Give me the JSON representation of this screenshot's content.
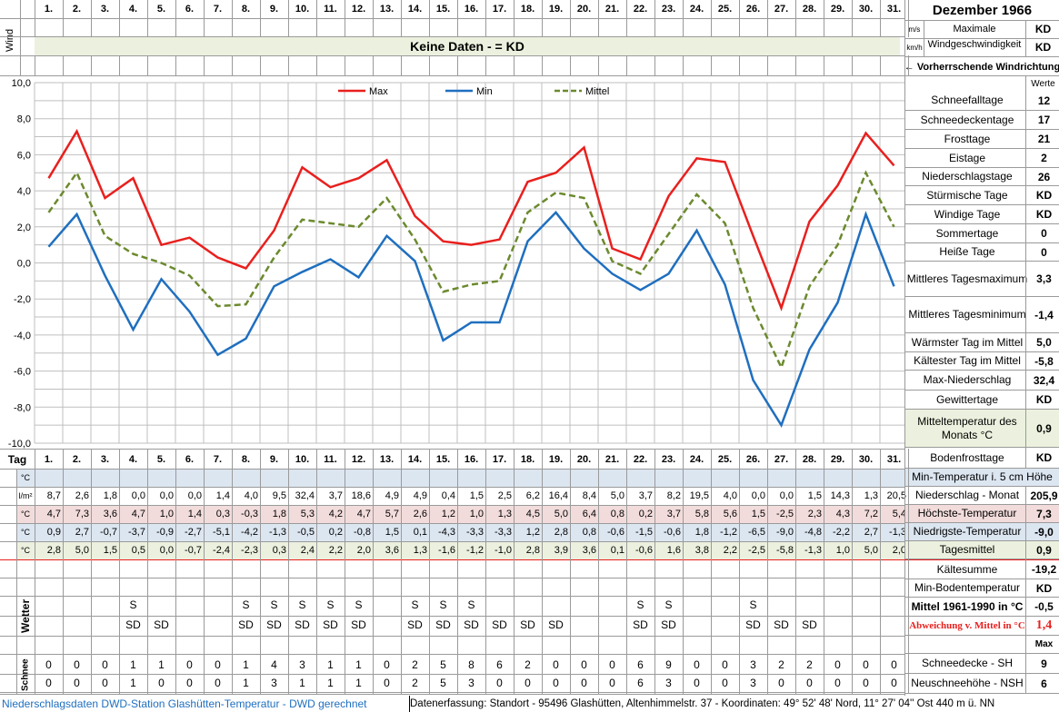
{
  "header": {
    "title": "Dezember 1966",
    "wind_label": "Wind",
    "no_data_banner": "Keine Daten -  = KD",
    "unit_ms": "m/s",
    "unit_kmh": "km/h",
    "max_wind_label": "Maximale Windgeschwindigkeit",
    "max_wind_ms": "KD",
    "max_wind_kmh": "KD",
    "prevailing_wind": "← Vorherrschende Windrichtung",
    "werte": "Werte"
  },
  "days": [
    "1.",
    "2.",
    "3.",
    "4.",
    "5.",
    "6.",
    "7.",
    "8.",
    "9.",
    "10.",
    "11.",
    "12.",
    "13.",
    "14.",
    "15.",
    "16.",
    "17.",
    "18.",
    "19.",
    "20.",
    "21.",
    "22.",
    "23.",
    "24.",
    "25.",
    "26.",
    "27.",
    "28.",
    "29.",
    "30.",
    "31."
  ],
  "chart_data": {
    "type": "line",
    "x": [
      1,
      2,
      3,
      4,
      5,
      6,
      7,
      8,
      9,
      10,
      11,
      12,
      13,
      14,
      15,
      16,
      17,
      18,
      19,
      20,
      21,
      22,
      23,
      24,
      25,
      26,
      27,
      28,
      29,
      30,
      31
    ],
    "ylim": [
      -10,
      10
    ],
    "yticks": [
      "10,0",
      "8,0",
      "6,0",
      "4,0",
      "2,0",
      "0,0",
      "-2,0",
      "-4,0",
      "-6,0",
      "-8,0",
      "-10,0"
    ],
    "grid": true,
    "legend": "top",
    "series": [
      {
        "name": "Max",
        "color": "#e8201e",
        "values": [
          4.7,
          7.3,
          3.6,
          4.7,
          1.0,
          1.4,
          0.3,
          -0.3,
          1.8,
          5.3,
          4.2,
          4.7,
          5.7,
          2.6,
          1.2,
          1.0,
          1.3,
          4.5,
          5.0,
          6.4,
          0.8,
          0.2,
          3.7,
          5.8,
          5.6,
          1.5,
          -2.5,
          2.3,
          4.3,
          7.2,
          5.4
        ]
      },
      {
        "name": "Min",
        "color": "#1f6fbf",
        "values": [
          0.9,
          2.7,
          -0.7,
          -3.7,
          -0.9,
          -2.7,
          -5.1,
          -4.2,
          -1.3,
          -0.5,
          0.2,
          -0.8,
          1.5,
          0.1,
          -4.3,
          -3.3,
          -3.3,
          1.2,
          2.8,
          0.8,
          -0.6,
          -1.5,
          -0.6,
          1.8,
          -1.2,
          -6.5,
          -9.0,
          -4.8,
          -2.2,
          2.7,
          -1.3
        ]
      },
      {
        "name": "Mittel",
        "color": "#6b8a2e",
        "dashed": true,
        "values": [
          2.8,
          5.0,
          1.5,
          0.5,
          0.0,
          -0.7,
          -2.4,
          -2.3,
          0.3,
          2.4,
          2.2,
          2.0,
          3.6,
          1.3,
          -1.6,
          -1.2,
          -1.0,
          2.8,
          3.9,
          3.6,
          0.1,
          -0.6,
          1.6,
          3.8,
          2.2,
          -2.5,
          -5.8,
          -1.3,
          1.0,
          5.0,
          2.0
        ]
      }
    ]
  },
  "table": {
    "tag_label": "Tag",
    "rows": [
      {
        "unit": "°C",
        "bg": "#dce6f1",
        "values": [
          "",
          "",
          "",
          "",
          "",
          "",
          "",
          "",
          "",
          "",
          "",
          "",
          "",
          "",
          "",
          "",
          "",
          "",
          "",
          "",
          "",
          "",
          "",
          "",
          "",
          "",
          "",
          "",
          "",
          "",
          ""
        ]
      },
      {
        "unit": "l/m²",
        "bg": "#ffffff",
        "values": [
          "8,7",
          "2,6",
          "1,8",
          "0,0",
          "0,0",
          "0,0",
          "1,4",
          "4,0",
          "9,5",
          "32,4",
          "3,7",
          "18,6",
          "4,9",
          "4,9",
          "0,4",
          "1,5",
          "2,5",
          "6,2",
          "16,4",
          "8,4",
          "5,0",
          "3,7",
          "8,2",
          "19,5",
          "4,0",
          "0,0",
          "0,0",
          "1,5",
          "14,3",
          "1,3",
          "20,5"
        ]
      },
      {
        "unit": "°C",
        "bg": "#f2dcdb",
        "values": [
          "4,7",
          "7,3",
          "3,6",
          "4,7",
          "1,0",
          "1,4",
          "0,3",
          "-0,3",
          "1,8",
          "5,3",
          "4,2",
          "4,7",
          "5,7",
          "2,6",
          "1,2",
          "1,0",
          "1,3",
          "4,5",
          "5,0",
          "6,4",
          "0,8",
          "0,2",
          "3,7",
          "5,8",
          "5,6",
          "1,5",
          "-2,5",
          "2,3",
          "4,3",
          "7,2",
          "5,4"
        ]
      },
      {
        "unit": "°C",
        "bg": "#dce6f1",
        "values": [
          "0,9",
          "2,7",
          "-0,7",
          "-3,7",
          "-0,9",
          "-2,7",
          "-5,1",
          "-4,2",
          "-1,3",
          "-0,5",
          "0,2",
          "-0,8",
          "1,5",
          "0,1",
          "-4,3",
          "-3,3",
          "-3,3",
          "1,2",
          "2,8",
          "0,8",
          "-0,6",
          "-1,5",
          "-0,6",
          "1,8",
          "-1,2",
          "-6,5",
          "-9,0",
          "-4,8",
          "-2,2",
          "2,7",
          "-1,3"
        ]
      },
      {
        "unit": "°C",
        "bg": "#ebf1de",
        "values": [
          "2,8",
          "5,0",
          "1,5",
          "0,5",
          "0,0",
          "-0,7",
          "-2,4",
          "-2,3",
          "0,3",
          "2,4",
          "2,2",
          "2,0",
          "3,6",
          "1,3",
          "-1,6",
          "-1,2",
          "-1,0",
          "2,8",
          "3,9",
          "3,6",
          "0,1",
          "-0,6",
          "1,6",
          "3,8",
          "2,2",
          "-2,5",
          "-5,8",
          "-1,3",
          "1,0",
          "5,0",
          "2,0"
        ]
      }
    ],
    "wetter_label": "Wetter",
    "wetter_rows": [
      [
        "",
        "",
        "",
        "",
        "",
        "",
        "",
        "",
        "",
        "",
        "",
        "",
        "",
        "",
        "",
        "",
        "",
        "",
        "",
        "",
        "",
        "",
        "",
        "",
        "",
        "",
        "",
        "",
        "",
        "",
        ""
      ],
      [
        "",
        "",
        "",
        "S",
        "",
        "",
        "",
        "S",
        "S",
        "S",
        "S",
        "S",
        "",
        "S",
        "S",
        "S",
        "",
        "",
        "",
        "",
        "",
        "S",
        "S",
        "",
        "",
        "S",
        "",
        "",
        "",
        "",
        ""
      ],
      [
        "",
        "",
        "",
        "SD",
        "SD",
        "",
        "",
        "SD",
        "SD",
        "SD",
        "SD",
        "SD",
        "",
        "SD",
        "SD",
        "SD",
        "SD",
        "SD",
        "SD",
        "",
        "",
        "SD",
        "SD",
        "",
        "",
        "SD",
        "SD",
        "SD",
        "",
        "",
        ""
      ],
      [
        "",
        "",
        "",
        "",
        "",
        "",
        "",
        "",
        "",
        "",
        "",
        "",
        "",
        "",
        "",
        "",
        "",
        "",
        "",
        "",
        "",
        "",
        "",
        "",
        "",
        "",
        "",
        "",
        "",
        "",
        ""
      ]
    ],
    "schnee_label": "Schnee",
    "schnee_rows": [
      [
        "0",
        "0",
        "0",
        "1",
        "1",
        "0",
        "0",
        "1",
        "4",
        "3",
        "1",
        "1",
        "0",
        "2",
        "5",
        "8",
        "6",
        "2",
        "0",
        "0",
        "0",
        "6",
        "9",
        "0",
        "0",
        "3",
        "2",
        "2",
        "0",
        "0",
        "0"
      ],
      [
        "0",
        "0",
        "0",
        "1",
        "0",
        "0",
        "0",
        "1",
        "3",
        "1",
        "1",
        "1",
        "0",
        "2",
        "5",
        "3",
        "0",
        "0",
        "0",
        "0",
        "0",
        "6",
        "3",
        "0",
        "0",
        "3",
        "0",
        "0",
        "0",
        "0",
        "0"
      ]
    ]
  },
  "stats": [
    {
      "label": "Schneefalltage",
      "value": "12"
    },
    {
      "label": "Schneedeckentage",
      "value": "17"
    },
    {
      "label": "Frosttage",
      "value": "21"
    },
    {
      "label": "Eistage",
      "value": "2"
    },
    {
      "label": "Niederschlagstage",
      "value": "26"
    },
    {
      "label": "Stürmische Tage",
      "value": "KD"
    },
    {
      "label": "Windige Tage",
      "value": "KD"
    },
    {
      "label": "Sommertage",
      "value": "0"
    },
    {
      "label": "Heiße Tage",
      "value": "0"
    },
    {
      "label": "Mittleres Tagesmaximum",
      "value": "3,3"
    },
    {
      "label": "Mittleres Tagesminimum",
      "value": "-1,4"
    },
    {
      "label": "Wärmster Tag im Mittel",
      "value": "5,0"
    },
    {
      "label": "Kältester Tag im Mittel",
      "value": "-5,8"
    },
    {
      "label": "Max-Niederschlag",
      "value": "32,4"
    },
    {
      "label": "Gewittertage",
      "value": "KD"
    },
    {
      "label": "Mitteltemperatur des Monats °C",
      "value": "0,9"
    },
    {
      "label": "Bodenfrosttage",
      "value": "KD"
    }
  ],
  "bottom_stats": [
    {
      "label": "Min-Temperatur i. 5 cm Höhe",
      "value": ""
    },
    {
      "label": "Niederschlag - Monat",
      "value": "205,9"
    },
    {
      "label": "Höchste-Temperatur",
      "value": "7,3"
    },
    {
      "label": "Niedrigste-Temperatur",
      "value": "-9,0"
    },
    {
      "label": "Tagesmittel",
      "value": "0,9"
    },
    {
      "label": "Kältesumme",
      "value": "-19,2"
    },
    {
      "label": "Min-Bodentemperatur",
      "value": "KD"
    },
    {
      "label": "Mittel 1961-1990 in °C",
      "value": "-0,5"
    },
    {
      "label": "Abweichung v. Mittel in °C",
      "value": "1,4"
    },
    {
      "label": "",
      "value": "Max"
    },
    {
      "label": "Schneedecke -  SH",
      "value": "9"
    },
    {
      "label": "Neuschneehöhe - NSH",
      "value": "6"
    }
  ],
  "footer": {
    "left": "Niederschlagsdaten DWD-Station Glashütten-Temperatur -  DWD gerechnet",
    "right": "Datenerfassung: Standort -  95496  Glashütten, Altenhimmelstr. 37 - Koordinaten:  49° 52' 48' Nord,   11° 27' 04'' Ost   440 m ü. NN"
  }
}
